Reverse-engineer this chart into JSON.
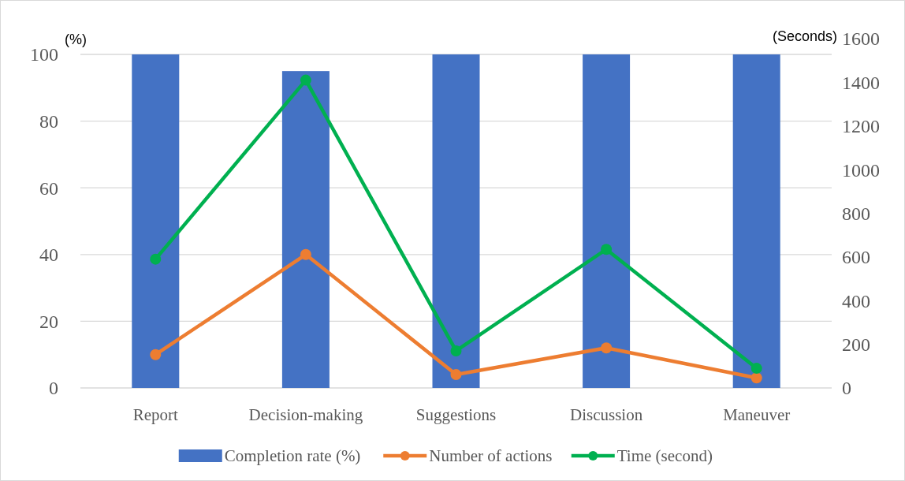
{
  "chart_data": {
    "type": "bar",
    "categories": [
      "Report",
      "Decision-making",
      "Suggestions",
      "Discussion",
      "Maneuver"
    ],
    "series": [
      {
        "name": "Completion rate (%)",
        "color": "#4472c4",
        "values": [
          100,
          95,
          100,
          100,
          100
        ]
      },
      {
        "name": "Number of actions",
        "type": "line",
        "color": "#ed7d31",
        "values": [
          10,
          40,
          4,
          12,
          3
        ]
      },
      {
        "name": "Time (second)",
        "type": "line",
        "axis": "y2",
        "color": "#00b050",
        "values": [
          590,
          1410,
          170,
          635,
          90
        ]
      }
    ],
    "ylabel": "(%)",
    "y2label": "(Seconds)",
    "ylim": [
      0,
      100
    ],
    "yticks": [
      0,
      20,
      40,
      60,
      80,
      100
    ],
    "y2lim": [
      0,
      1600
    ],
    "y2ticks": [
      0,
      200,
      400,
      600,
      800,
      1000,
      1200,
      1400,
      1600
    ],
    "grid": "y",
    "legend": "bottom",
    "marker": "circle",
    "line_style": "solid"
  }
}
